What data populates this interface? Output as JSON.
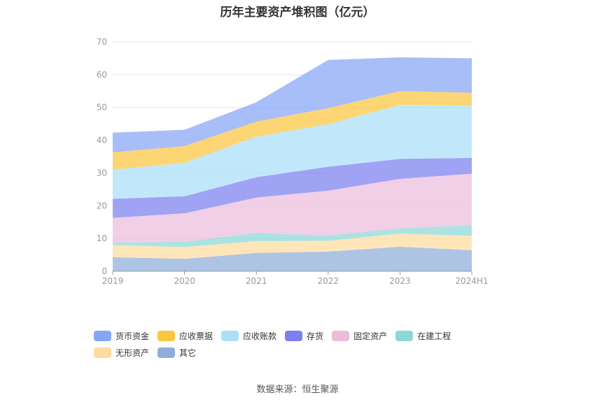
{
  "title": "历年主要资产堆积图（亿元）",
  "source": "数据来源：恒生聚源",
  "chart_data": {
    "type": "area",
    "stacked": true,
    "categories": [
      "2019",
      "2020",
      "2021",
      "2022",
      "2023",
      "2024H1"
    ],
    "ylim": [
      0,
      70
    ],
    "yticks": [
      0,
      10,
      20,
      30,
      40,
      50,
      60,
      70
    ],
    "grid": true,
    "legend_position": "bottom",
    "series": [
      {
        "name": "其它",
        "color": "#8fadd9",
        "values": [
          4.3,
          3.8,
          5.6,
          6.0,
          7.5,
          6.4
        ]
      },
      {
        "name": "无形资产",
        "color": "#fddc9e",
        "values": [
          3.7,
          3.6,
          3.6,
          3.3,
          4.0,
          4.4
        ]
      },
      {
        "name": "在建工程",
        "color": "#8ad8d8",
        "values": [
          0.7,
          1.7,
          2.5,
          1.6,
          1.6,
          3.2
        ]
      },
      {
        "name": "固定资产",
        "color": "#ecbcdc",
        "values": [
          7.6,
          8.6,
          10.8,
          13.7,
          15.1,
          15.8
        ]
      },
      {
        "name": "存货",
        "color": "#7b7ff0",
        "values": [
          5.8,
          5.2,
          6.2,
          7.3,
          6.1,
          4.8
        ]
      },
      {
        "name": "应收账款",
        "color": "#a9dff8",
        "values": [
          8.9,
          10.2,
          12.4,
          13.0,
          16.5,
          15.9
        ]
      },
      {
        "name": "应收票据",
        "color": "#fbc640",
        "values": [
          5.3,
          5.1,
          4.6,
          4.9,
          4.2,
          4.0
        ]
      },
      {
        "name": "货币资金",
        "color": "#86a5f5",
        "values": [
          6.0,
          5.0,
          5.9,
          14.7,
          10.3,
          10.5
        ]
      }
    ]
  },
  "legend_order": [
    "货币资金",
    "应收票据",
    "应收账款",
    "存货",
    "固定资产",
    "在建工程",
    "无形资产",
    "其它"
  ]
}
